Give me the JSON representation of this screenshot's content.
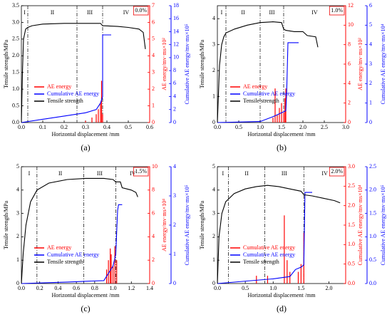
{
  "chart_data": [
    {
      "type": "line",
      "panel": "(a)",
      "annotation": "0.0%",
      "stages": [
        "I",
        "II",
        "III",
        "IV"
      ],
      "stage_bounds": [
        0.03,
        0.26,
        0.38
      ],
      "legend": "lower left",
      "xlabel": "Horizontal displacement /mm",
      "ylabel": "Tensile strength/MPa",
      "y2label": "AE energy/mv·ms×10²",
      "y3label": "Cumulative AE energy/mv·ms×10⁵",
      "xlim": [
        0,
        0.6
      ],
      "xticks": [
        {
          "value": 0,
          "label": "0.0"
        },
        0.1,
        0.2,
        0.3,
        0.4,
        0.5,
        0.6
      ],
      "ylim": [
        0,
        3.5
      ],
      "yticks": [
        {
          "value": 0,
          "label": "0.0"
        },
        0.5,
        {
          "value": 1,
          "label": "1.0"
        },
        1.5,
        {
          "value": 2,
          "label": "2.0"
        },
        2.5,
        {
          "value": 3,
          "label": "3.0"
        },
        3.5
      ],
      "y2lim": [
        0,
        7
      ],
      "y2ticks": [
        0,
        1,
        2,
        3,
        4,
        5,
        6,
        7
      ],
      "y3lim": [
        0,
        18
      ],
      "y3ticks": [
        0,
        2,
        4,
        6,
        8,
        10,
        12,
        14,
        16,
        18
      ],
      "series": [
        {
          "name": "AE energy",
          "type": "bar",
          "color": "#ff0000",
          "axis": "y2",
          "x": [
            0.3,
            0.33,
            0.35,
            0.36,
            0.37,
            0.375,
            0.38
          ],
          "values": [
            0.1,
            0.3,
            0.5,
            0.8,
            1.2,
            2.5,
            0.5
          ]
        },
        {
          "name": "Cumulative AE energy",
          "color": "#0000ff",
          "axis": "y3",
          "x": [
            0,
            0.1,
            0.2,
            0.3,
            0.35,
            0.37,
            0.38,
            0.38,
            0.42
          ],
          "values": [
            0,
            0.5,
            1,
            1.5,
            2,
            3,
            4,
            13.5,
            13.5
          ]
        },
        {
          "name": "Tensile strength",
          "color": "#000000",
          "x": [
            0,
            0.005,
            0.01,
            0.02,
            0.03,
            0.05,
            0.1,
            0.2,
            0.3,
            0.37,
            0.38,
            0.45,
            0.5,
            0.55,
            0.57,
            0.58
          ],
          "values": [
            0,
            1.5,
            2.5,
            2.8,
            2.85,
            2.9,
            2.95,
            2.97,
            2.97,
            2.97,
            2.9,
            2.88,
            2.85,
            2.8,
            2.7,
            2.2
          ]
        }
      ]
    },
    {
      "type": "line",
      "panel": "(b)",
      "annotation": "1.0%",
      "stages": [
        "I",
        "II",
        "III",
        "IV"
      ],
      "stage_bounds": [
        0.2,
        1.0,
        1.55
      ],
      "legend": "lower left",
      "xlabel": "Horizontal displacement /mm",
      "ylabel": "Tensile strength/MPa",
      "y2label": "AE energy/mv·ms×10²",
      "y3label": "Cumulative AE energy/mv·ms×10⁴",
      "xlim": [
        0,
        3
      ],
      "xticks": [
        {
          "value": 0,
          "label": "0.0"
        },
        0.5,
        {
          "value": 1,
          "label": "1.0"
        },
        1.5,
        {
          "value": 2,
          "label": "2.0"
        },
        2.5,
        {
          "value": 3,
          "label": "3.0"
        }
      ],
      "ylim": [
        0,
        4.5
      ],
      "yticks": [
        0,
        1,
        2,
        3,
        4
      ],
      "y2lim": [
        0,
        12
      ],
      "y2ticks": [
        0,
        2,
        4,
        6,
        8,
        10,
        12
      ],
      "y3lim": [
        0,
        6
      ],
      "y3ticks": [
        0,
        1,
        2,
        3,
        4,
        5,
        6
      ],
      "series": [
        {
          "name": "AE energy",
          "type": "bar",
          "color": "#ff0000",
          "axis": "y2",
          "x": [
            1.3,
            1.35,
            1.4,
            1.45,
            1.5,
            1.55,
            1.58,
            1.6
          ],
          "values": [
            0.5,
            3.5,
            0.8,
            1.5,
            2,
            1,
            2.5,
            3.5
          ]
        },
        {
          "name": "Cumulative AE energy",
          "color": "#0000ff",
          "axis": "y3",
          "x": [
            0,
            1,
            1.3,
            1.4,
            1.5,
            1.6,
            1.62,
            1.65,
            1.9
          ],
          "values": [
            0,
            0.05,
            0.3,
            0.4,
            0.5,
            0.6,
            1.5,
            4.1,
            4.1
          ]
        },
        {
          "name": "Tensile strength",
          "color": "#000000",
          "x": [
            0,
            0.05,
            0.1,
            0.15,
            0.2,
            0.4,
            0.7,
            1,
            1.3,
            1.5,
            1.55,
            1.6,
            1.8,
            2,
            2.1,
            2.3,
            2.35
          ],
          "values": [
            0,
            2.2,
            3,
            3.3,
            3.45,
            3.6,
            3.75,
            3.85,
            3.88,
            3.85,
            3.6,
            3.55,
            3.5,
            3.5,
            3.35,
            3.3,
            2.9
          ]
        }
      ]
    },
    {
      "type": "line",
      "panel": "(c)",
      "annotation": "1.5%",
      "stages": [
        "I",
        "II",
        "III",
        "IV"
      ],
      "stage_bounds": [
        0.17,
        0.68,
        1.03
      ],
      "legend": "lower left",
      "xlabel": "Horizontal displacement /mm",
      "ylabel": "Tensile strength/MPa",
      "y2label": "AE energy/mv·ms×10⁴",
      "y3label": "Cumulative AE energy/mv·ms×10⁵",
      "xlim": [
        0,
        1.4
      ],
      "xticks": [
        {
          "value": 0,
          "label": "0.0"
        },
        0.2,
        0.4,
        0.6,
        0.8,
        {
          "value": 1,
          "label": "1.0"
        },
        1.2,
        1.4
      ],
      "ylim": [
        0,
        5
      ],
      "yticks": [
        0,
        1,
        2,
        3,
        4,
        5
      ],
      "y2lim": [
        0,
        10
      ],
      "y2ticks": [
        0,
        2,
        4,
        6,
        8,
        10
      ],
      "y3lim": [
        0,
        4
      ],
      "y3ticks": [
        0,
        1,
        2,
        3,
        4
      ],
      "series": [
        {
          "name": "AE energy",
          "type": "bar",
          "color": "#ff0000",
          "axis": "y2",
          "x": [
            0.93,
            0.95,
            0.97,
            0.98,
            1.0,
            1.02,
            1.04
          ],
          "values": [
            1.2,
            2,
            3,
            2.5,
            1.5,
            3.2,
            2
          ]
        },
        {
          "name": "Cumulative AE energy",
          "color": "#0000ff",
          "axis": "y3",
          "x": [
            0,
            0.5,
            0.9,
            1,
            1.03,
            1.05,
            1.06,
            1.1
          ],
          "values": [
            0,
            0.05,
            0.1,
            0.6,
            1,
            2.5,
            2.7,
            2.7
          ]
        },
        {
          "name": "Tensile strength",
          "color": "#000000",
          "x": [
            0,
            0.02,
            0.05,
            0.1,
            0.17,
            0.3,
            0.5,
            0.7,
            0.9,
            1.0,
            1.03,
            1.08,
            1.1,
            1.2,
            1.25,
            1.27
          ],
          "values": [
            0,
            1.3,
            2.5,
            3.5,
            4,
            4.3,
            4.45,
            4.5,
            4.5,
            4.45,
            4.35,
            4.35,
            4.1,
            4,
            3.9,
            3.7
          ]
        }
      ]
    },
    {
      "type": "line",
      "panel": "(d)",
      "annotation": "2.0%",
      "stages": [
        "I",
        "II",
        "III",
        "IV"
      ],
      "stage_bounds": [
        0.2,
        0.85,
        1.55
      ],
      "legend": "lower left",
      "xlabel": "Horizontal displacement /mm",
      "ylabel": "Tensile strength/MPa",
      "y2label": "Cumulative AE energy/mv·ms×10⁴",
      "y3label": "Cumulative AE energy/mv·ms×10⁵",
      "xlim": [
        0,
        2.3
      ],
      "xticks": [
        {
          "value": 0,
          "label": "0.0"
        },
        0.5,
        {
          "value": 1,
          "label": "1.0"
        },
        1.5,
        {
          "value": 2,
          "label": "2.0"
        }
      ],
      "ylim": [
        0,
        5
      ],
      "yticks": [
        0,
        1,
        2,
        3,
        4,
        5
      ],
      "y2lim": [
        0,
        3
      ],
      "y2ticks": [
        {
          "value": 0,
          "label": "0.0"
        },
        0.5,
        {
          "value": 1,
          "label": "1.0"
        },
        1.5,
        {
          "value": 2,
          "label": "2.0"
        },
        2.5,
        {
          "value": 3,
          "label": "3.0"
        }
      ],
      "y3lim": [
        0,
        2.5
      ],
      "y3ticks": [
        {
          "value": 0,
          "label": "0.0"
        },
        0.5,
        {
          "value": 1,
          "label": "1.0"
        },
        1.5,
        {
          "value": 2,
          "label": "2.0"
        },
        2.5
      ],
      "series": [
        {
          "name": "Cumulative AE energy",
          "type": "bar",
          "color": "#ff0000",
          "axis": "y2",
          "x": [
            0.7,
            0.9,
            1.2,
            1.25,
            1.3,
            1.45,
            1.5,
            1.55
          ],
          "values": [
            0.2,
            0.2,
            1.75,
            0.6,
            0.3,
            0.3,
            0.5,
            1.3
          ]
        },
        {
          "name": "Cumulative AE energy",
          "color": "#0000ff",
          "axis": "y3",
          "x": [
            0,
            1,
            1.3,
            1.4,
            1.5,
            1.55,
            1.57,
            1.7
          ],
          "values": [
            0,
            0.1,
            0.15,
            0.3,
            0.35,
            0.4,
            1.95,
            1.95
          ]
        },
        {
          "name": "Tensile strength",
          "color": "#000000",
          "x": [
            0,
            0.03,
            0.08,
            0.15,
            0.3,
            0.5,
            0.7,
            0.9,
            1.1,
            1.3,
            1.5,
            1.55,
            1.7,
            1.9,
            2.1,
            2.2
          ],
          "values": [
            0,
            2,
            3,
            3.5,
            3.85,
            4.05,
            4.15,
            4.2,
            4.15,
            4.05,
            3.95,
            3.8,
            3.75,
            3.65,
            3.55,
            3.45
          ]
        }
      ]
    }
  ]
}
